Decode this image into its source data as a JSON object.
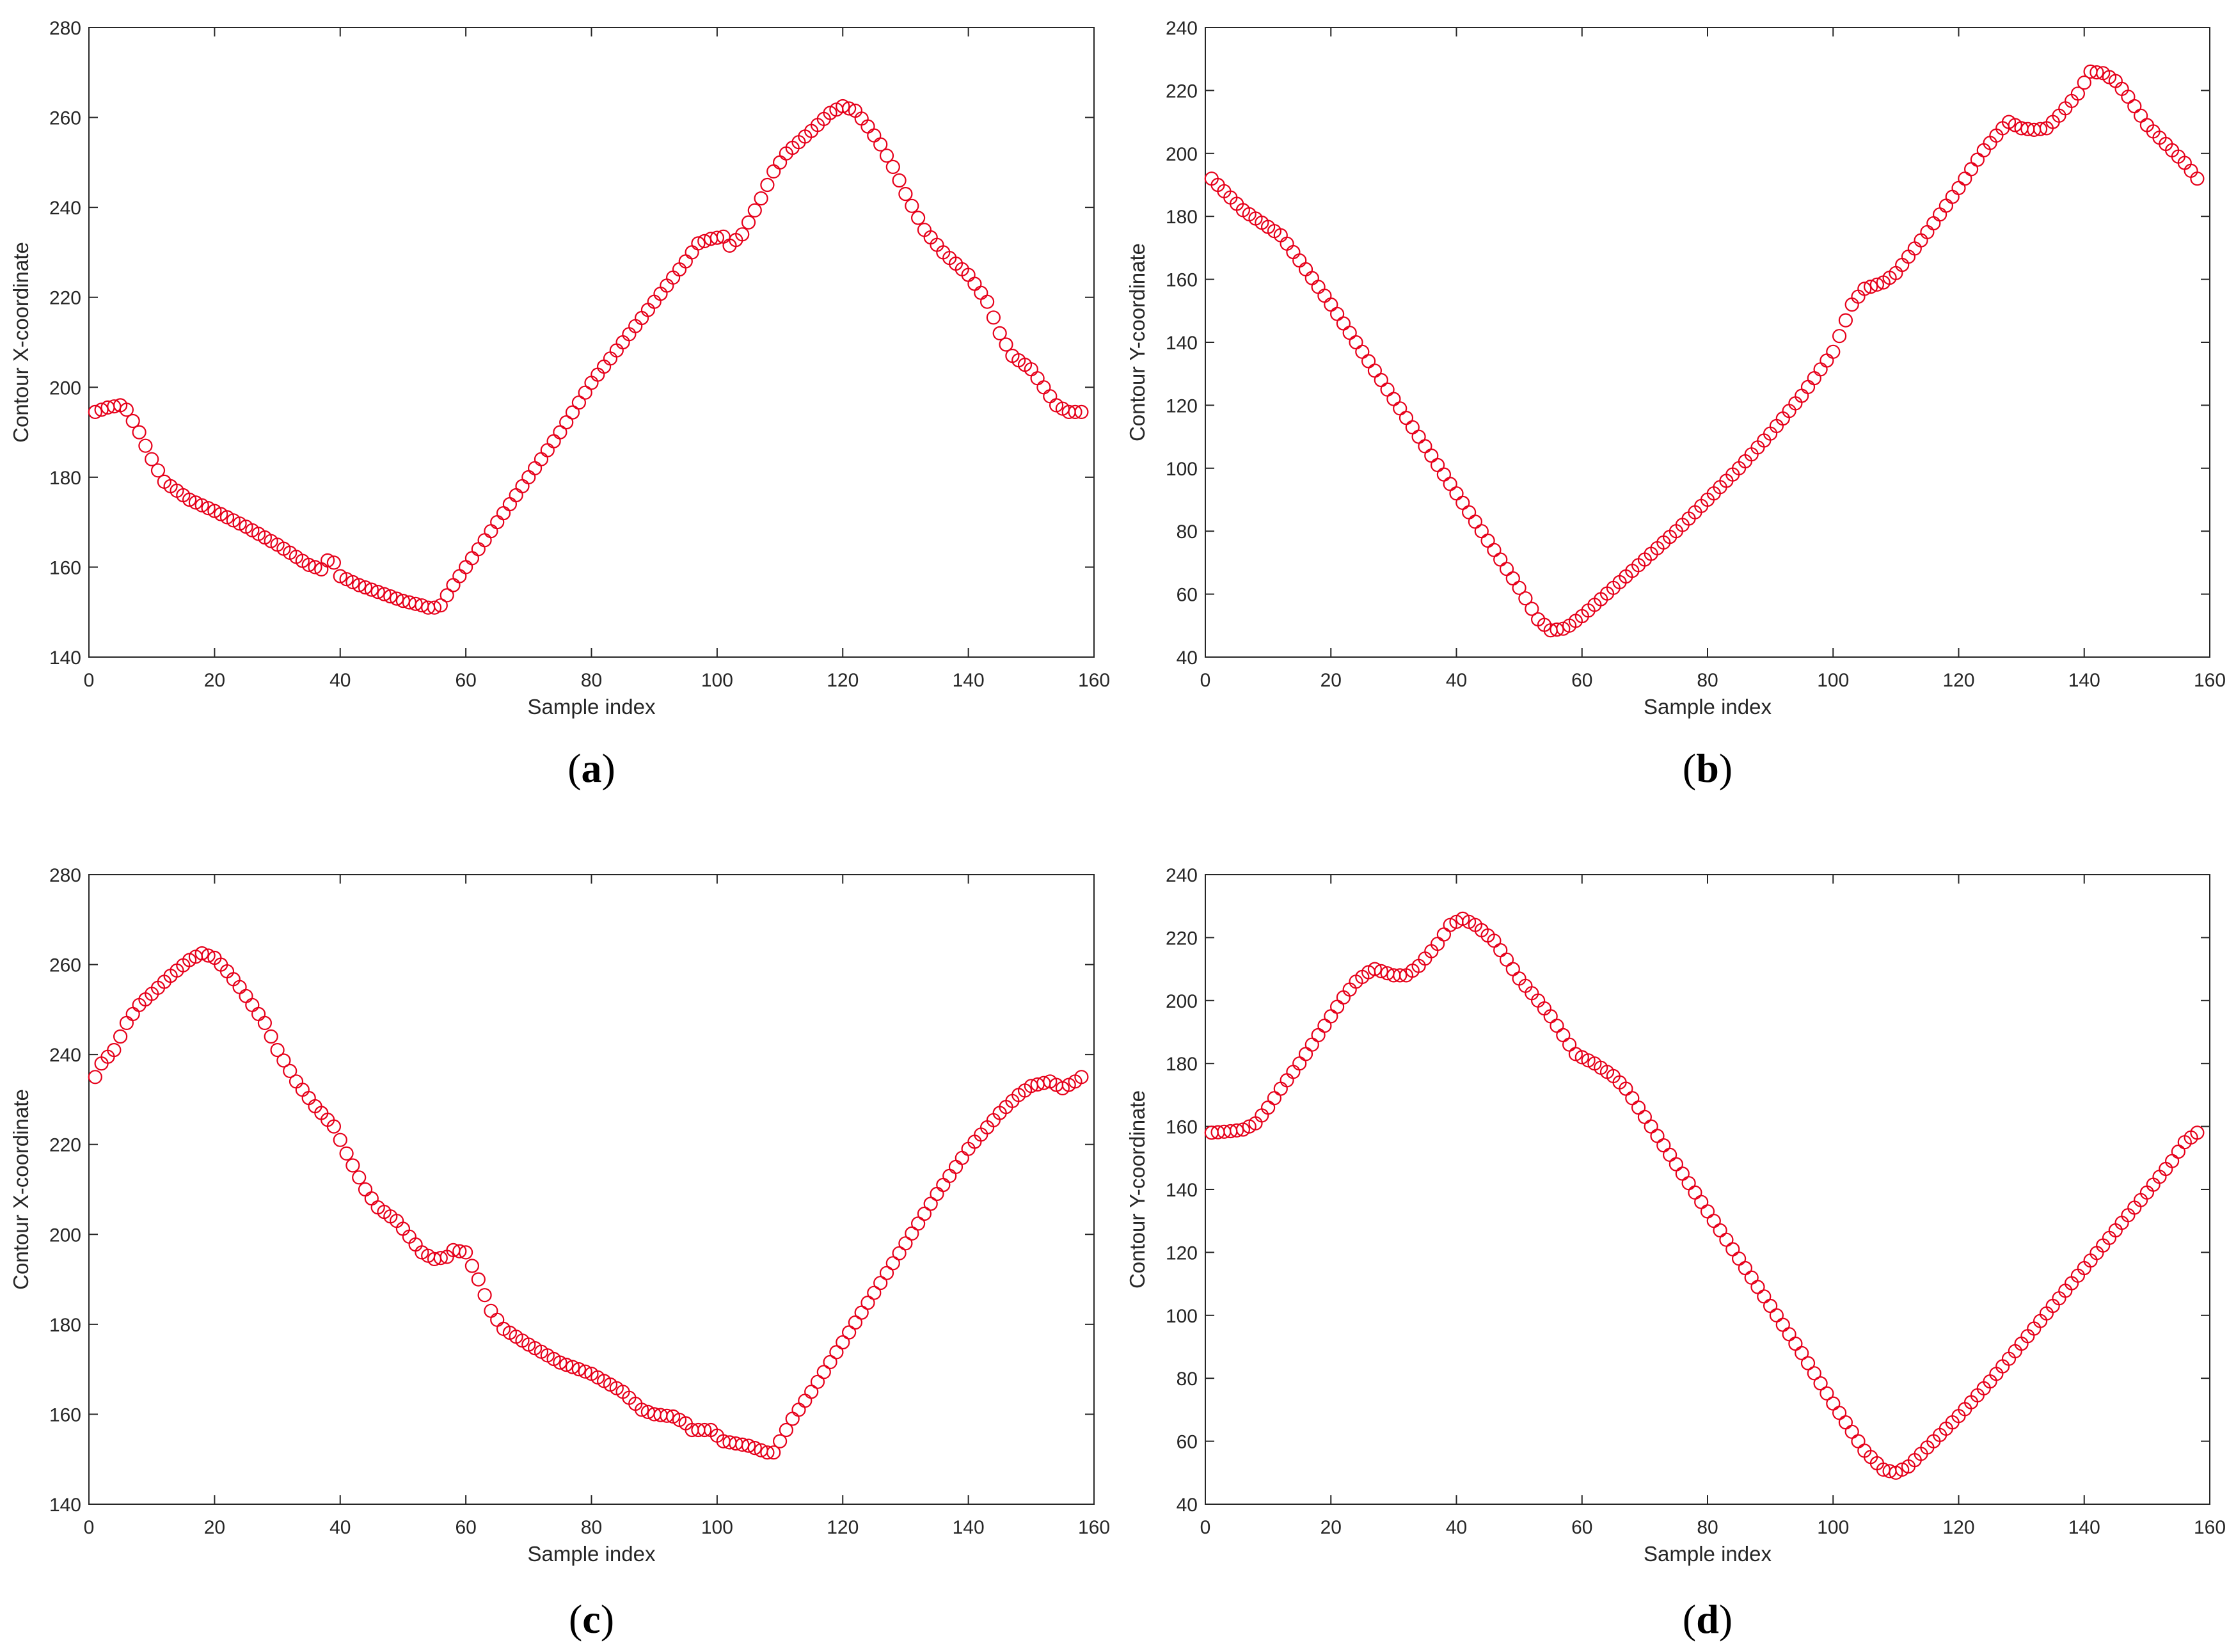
{
  "chart_data": [
    {
      "panel_label": "(a)",
      "label_letter": "a",
      "type": "scatter",
      "xlabel": "Sample index",
      "ylabel": "Contour X-coordinate",
      "xlim": [
        0,
        160
      ],
      "ylim": [
        140,
        280
      ],
      "xticks": [
        "0",
        "20",
        "40",
        "60",
        "80",
        "100",
        "120",
        "140",
        "160"
      ],
      "yticks": [
        "140",
        "160",
        "180",
        "200",
        "220",
        "240",
        "260",
        "280"
      ],
      "x_range": [
        1,
        158
      ],
      "keypoints": [
        [
          1,
          194.5
        ],
        [
          3,
          195.5
        ],
        [
          5,
          196
        ],
        [
          6,
          195
        ],
        [
          8,
          190
        ],
        [
          10,
          184
        ],
        [
          12,
          179
        ],
        [
          14,
          177
        ],
        [
          16,
          175
        ],
        [
          20,
          172.5
        ],
        [
          25,
          169
        ],
        [
          30,
          165
        ],
        [
          35,
          160.5
        ],
        [
          36,
          160
        ],
        [
          37,
          159.5
        ],
        [
          38,
          161.5
        ],
        [
          39,
          161
        ],
        [
          40,
          158
        ],
        [
          43,
          156
        ],
        [
          46,
          154.5
        ],
        [
          50,
          152.5
        ],
        [
          53,
          151.5
        ],
        [
          54,
          151
        ],
        [
          55,
          151
        ],
        [
          56,
          151.5
        ],
        [
          58,
          156
        ],
        [
          60,
          160
        ],
        [
          65,
          170
        ],
        [
          70,
          180
        ],
        [
          75,
          190
        ],
        [
          80,
          201
        ],
        [
          85,
          210
        ],
        [
          90,
          219
        ],
        [
          95,
          228
        ],
        [
          97,
          232
        ],
        [
          99,
          233
        ],
        [
          101,
          233.5
        ],
        [
          102,
          231.5
        ],
        [
          104,
          234
        ],
        [
          107,
          242
        ],
        [
          109,
          248
        ],
        [
          111,
          252
        ],
        [
          115,
          257
        ],
        [
          118,
          261
        ],
        [
          120,
          262.5
        ],
        [
          122,
          261.5
        ],
        [
          124,
          258
        ],
        [
          126,
          254
        ],
        [
          128,
          249
        ],
        [
          130,
          243
        ],
        [
          133,
          235
        ],
        [
          136,
          230
        ],
        [
          140,
          225
        ],
        [
          143,
          219
        ],
        [
          145,
          212
        ],
        [
          147,
          207
        ],
        [
          150,
          204
        ],
        [
          152,
          200
        ],
        [
          154,
          196
        ],
        [
          156,
          194.5
        ],
        [
          158,
          194.5
        ]
      ]
    },
    {
      "panel_label": "(b)",
      "label_letter": "b",
      "type": "scatter",
      "xlabel": "Sample index",
      "ylabel": "Contour Y-coordinate",
      "xlim": [
        0,
        160
      ],
      "ylim": [
        40,
        240
      ],
      "xticks": [
        "0",
        "20",
        "40",
        "60",
        "80",
        "100",
        "120",
        "140",
        "160"
      ],
      "yticks": [
        "40",
        "60",
        "80",
        "100",
        "120",
        "140",
        "160",
        "180",
        "200",
        "220",
        "240"
      ],
      "x_range": [
        1,
        158
      ],
      "keypoints": [
        [
          1,
          192
        ],
        [
          3,
          188
        ],
        [
          6,
          182
        ],
        [
          9,
          178
        ],
        [
          12,
          174
        ],
        [
          15,
          166
        ],
        [
          20,
          152
        ],
        [
          25,
          137
        ],
        [
          30,
          122
        ],
        [
          35,
          107
        ],
        [
          40,
          92
        ],
        [
          45,
          77
        ],
        [
          50,
          62
        ],
        [
          53,
          52
        ],
        [
          55,
          48.5
        ],
        [
          57,
          49
        ],
        [
          58,
          50
        ],
        [
          60,
          53
        ],
        [
          65,
          62
        ],
        [
          70,
          71
        ],
        [
          75,
          80
        ],
        [
          80,
          90
        ],
        [
          85,
          100
        ],
        [
          90,
          111
        ],
        [
          95,
          123
        ],
        [
          100,
          137
        ],
        [
          103,
          152
        ],
        [
          105,
          157
        ],
        [
          108,
          159
        ],
        [
          110,
          162
        ],
        [
          115,
          175
        ],
        [
          120,
          189
        ],
        [
          124,
          201
        ],
        [
          127,
          208
        ],
        [
          128,
          210
        ],
        [
          130,
          208
        ],
        [
          132,
          207.5
        ],
        [
          134,
          208
        ],
        [
          136,
          212
        ],
        [
          139,
          219
        ],
        [
          141,
          226
        ],
        [
          143,
          225.5
        ],
        [
          145,
          223
        ],
        [
          147,
          218
        ],
        [
          150,
          209
        ],
        [
          153,
          203
        ],
        [
          156,
          197
        ],
        [
          158,
          192
        ]
      ]
    },
    {
      "panel_label": "(c)",
      "label_letter": "c",
      "type": "scatter",
      "xlabel": "Sample index",
      "ylabel": "Contour X-coordinate",
      "xlim": [
        0,
        160
      ],
      "ylim": [
        140,
        280
      ],
      "xticks": [
        "0",
        "20",
        "40",
        "60",
        "80",
        "100",
        "120",
        "140",
        "160"
      ],
      "yticks": [
        "140",
        "160",
        "180",
        "200",
        "220",
        "240",
        "260",
        "280"
      ],
      "x_range": [
        1,
        158
      ],
      "keypoints": [
        [
          1,
          235
        ],
        [
          2,
          238
        ],
        [
          4,
          241
        ],
        [
          6,
          247
        ],
        [
          8,
          251
        ],
        [
          10,
          253.5
        ],
        [
          13,
          257.5
        ],
        [
          16,
          261
        ],
        [
          18,
          262.5
        ],
        [
          20,
          261.5
        ],
        [
          22,
          258.5
        ],
        [
          24,
          255
        ],
        [
          26,
          251
        ],
        [
          28,
          247
        ],
        [
          30,
          241
        ],
        [
          33,
          234
        ],
        [
          36,
          228.5
        ],
        [
          39,
          224
        ],
        [
          41,
          218
        ],
        [
          44,
          210
        ],
        [
          46,
          206
        ],
        [
          49,
          203
        ],
        [
          51,
          199.5
        ],
        [
          53,
          196
        ],
        [
          55,
          194.5
        ],
        [
          57,
          195
        ],
        [
          58,
          196.5
        ],
        [
          60,
          196
        ],
        [
          62,
          190
        ],
        [
          64,
          183
        ],
        [
          66,
          179
        ],
        [
          70,
          175.5
        ],
        [
          75,
          171.5
        ],
        [
          80,
          169
        ],
        [
          85,
          165
        ],
        [
          88,
          161
        ],
        [
          90,
          160
        ],
        [
          93,
          159.5
        ],
        [
          95,
          158
        ],
        [
          96,
          156.5
        ],
        [
          99,
          156.5
        ],
        [
          101,
          154
        ],
        [
          105,
          153
        ],
        [
          108,
          151.5
        ],
        [
          109,
          151.5
        ],
        [
          112,
          159
        ],
        [
          115,
          165
        ],
        [
          120,
          176
        ],
        [
          125,
          187
        ],
        [
          130,
          198
        ],
        [
          135,
          209
        ],
        [
          140,
          219
        ],
        [
          145,
          227
        ],
        [
          148,
          231
        ],
        [
          150,
          233
        ],
        [
          153,
          234
        ],
        [
          155,
          232.5
        ],
        [
          157,
          234
        ],
        [
          158,
          235
        ]
      ]
    },
    {
      "panel_label": "(d)",
      "label_letter": "d",
      "type": "scatter",
      "xlabel": "Sample index",
      "ylabel": "Contour Y-coordinate",
      "xlim": [
        0,
        160
      ],
      "ylim": [
        40,
        240
      ],
      "xticks": [
        "0",
        "20",
        "40",
        "60",
        "80",
        "100",
        "120",
        "140",
        "160"
      ],
      "yticks": [
        "40",
        "60",
        "80",
        "100",
        "120",
        "140",
        "160",
        "180",
        "200",
        "220",
        "240"
      ],
      "x_range": [
        1,
        158
      ],
      "keypoints": [
        [
          1,
          158
        ],
        [
          4,
          158.5
        ],
        [
          6,
          159
        ],
        [
          8,
          161
        ],
        [
          10,
          166
        ],
        [
          12,
          172
        ],
        [
          15,
          180
        ],
        [
          18,
          189
        ],
        [
          20,
          195
        ],
        [
          22,
          201
        ],
        [
          24,
          206
        ],
        [
          26,
          209
        ],
        [
          27,
          210
        ],
        [
          30,
          208
        ],
        [
          32,
          208
        ],
        [
          34,
          211
        ],
        [
          37,
          218
        ],
        [
          39,
          224
        ],
        [
          41,
          226
        ],
        [
          43,
          224
        ],
        [
          46,
          219
        ],
        [
          48,
          213
        ],
        [
          50,
          207
        ],
        [
          53,
          200
        ],
        [
          55,
          195
        ],
        [
          57,
          189
        ],
        [
          59,
          183
        ],
        [
          62,
          180
        ],
        [
          65,
          176
        ],
        [
          67,
          172
        ],
        [
          70,
          163
        ],
        [
          75,
          148
        ],
        [
          80,
          133
        ],
        [
          85,
          118
        ],
        [
          90,
          103
        ],
        [
          95,
          88
        ],
        [
          100,
          72
        ],
        [
          105,
          57
        ],
        [
          108,
          51
        ],
        [
          110,
          50
        ],
        [
          112,
          52
        ],
        [
          114,
          56
        ],
        [
          117,
          62
        ],
        [
          120,
          68
        ],
        [
          125,
          79
        ],
        [
          130,
          91
        ],
        [
          135,
          103
        ],
        [
          140,
          115
        ],
        [
          145,
          127
        ],
        [
          150,
          139
        ],
        [
          154,
          149
        ],
        [
          156,
          155
        ],
        [
          158,
          158
        ]
      ]
    }
  ],
  "colors": {
    "marker_stroke": "#e6001a",
    "axes": "#262626",
    "background": "#ffffff"
  }
}
